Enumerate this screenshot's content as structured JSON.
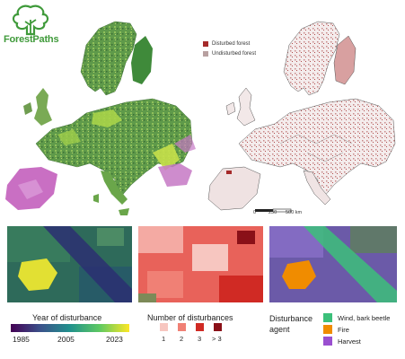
{
  "logo": {
    "text": "ForestPaths",
    "icon": "tree-logo-icon",
    "color": "#3f9a3a"
  },
  "top_legend": {
    "items": [
      {
        "label": "Disturbed forest",
        "color": "#a52a2a"
      },
      {
        "label": "Undisturbed forest",
        "color": "#b8a0a0"
      }
    ]
  },
  "scalebar": {
    "labels": [
      "0",
      "250",
      "500 km"
    ]
  },
  "year_legend": {
    "title": "Year of disturbance",
    "ticks": [
      "1985",
      "2005",
      "2023"
    ],
    "colormap": "viridis"
  },
  "count_legend": {
    "title": "Number of disturbances",
    "items": [
      {
        "label": "1",
        "color": "#f7c6c0"
      },
      {
        "label": "2",
        "color": "#f08075"
      },
      {
        "label": "3",
        "color": "#d02a24"
      },
      {
        "label": "> 3",
        "color": "#8a1018"
      }
    ]
  },
  "agent_legend": {
    "title_line1": "Disturbance",
    "title_line2": "agent",
    "items": [
      {
        "label": "Wind, bark beetle",
        "color": "#3cc07a"
      },
      {
        "label": "Fire",
        "color": "#f08c00"
      },
      {
        "label": "Harvest",
        "color": "#9a4fd0"
      }
    ]
  }
}
